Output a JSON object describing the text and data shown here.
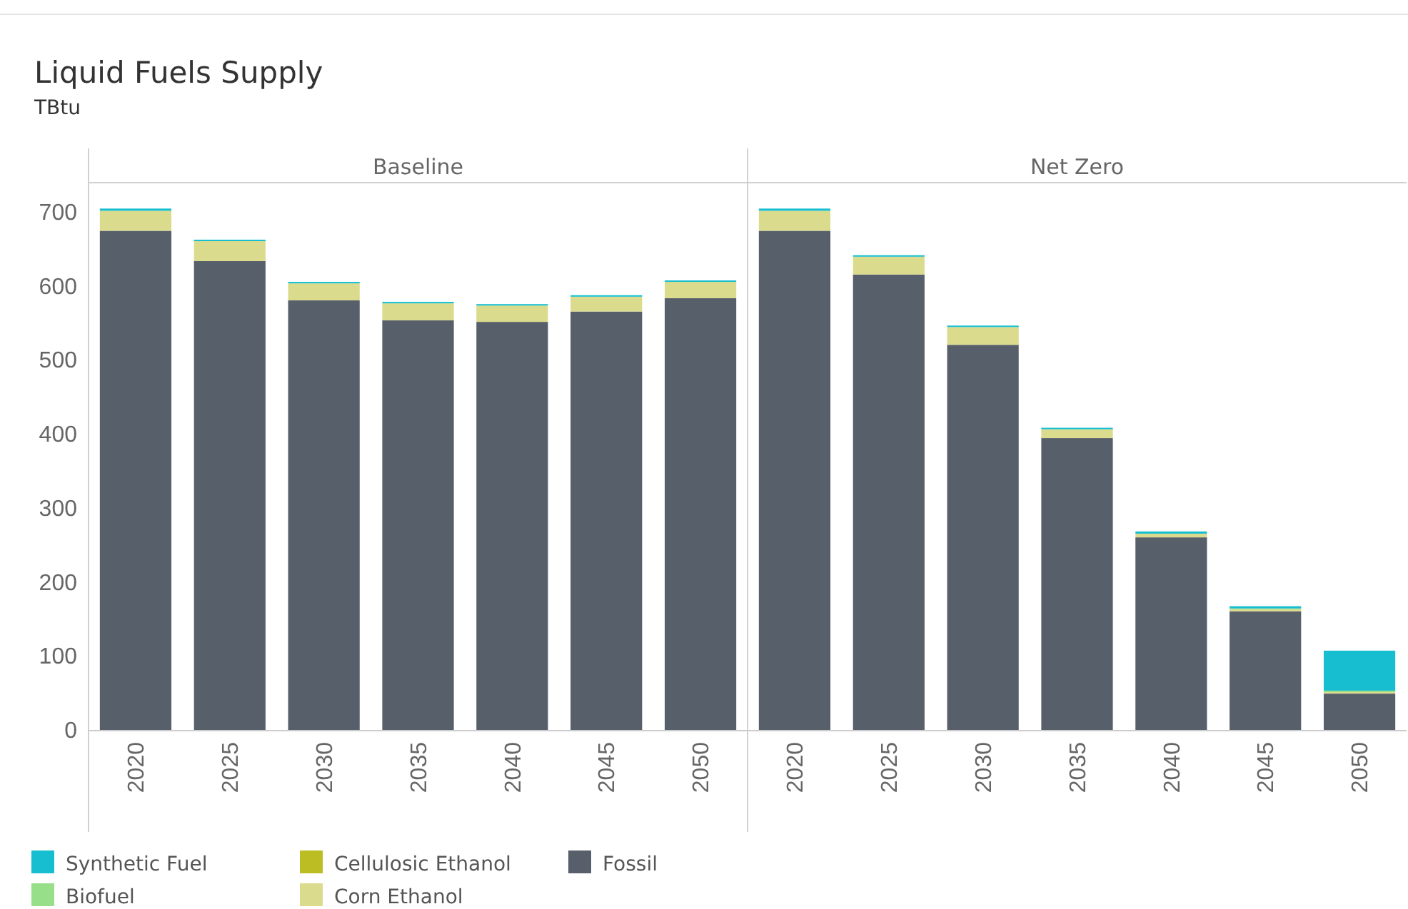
{
  "chart_data": [
    {
      "type": "bar",
      "title": "Liquid Fuels Supply",
      "subtitle": "TBtu",
      "annotations": [
        "Baseline"
      ],
      "stacked": true,
      "categories": [
        "2020",
        "2025",
        "2030",
        "2035",
        "2040",
        "2045",
        "2050"
      ],
      "ylim": [
        0,
        740
      ],
      "yticks": [
        0,
        100,
        200,
        300,
        400,
        500,
        600,
        700
      ],
      "legend": "bottom",
      "series": [
        {
          "name": "Fossil",
          "color": "#575f6b",
          "values": [
            675,
            634,
            581,
            554,
            552,
            566,
            584
          ]
        },
        {
          "name": "Corn Ethanol",
          "color": "#dbdb8d",
          "values": [
            27,
            27,
            23,
            23,
            22,
            20,
            22
          ]
        },
        {
          "name": "Cellulosic Ethanol",
          "color": "#bcbd22",
          "values": [
            0,
            0,
            0,
            0,
            0,
            0,
            0
          ]
        },
        {
          "name": "Biofuel",
          "color": "#98df8a",
          "values": [
            0,
            0,
            0,
            0,
            0,
            0,
            0
          ]
        },
        {
          "name": "Synthetic Fuel",
          "color": "#17becf",
          "values": [
            3,
            2,
            2,
            2,
            2,
            2,
            2
          ]
        }
      ]
    },
    {
      "type": "bar",
      "annotations": [
        "Net Zero"
      ],
      "stacked": true,
      "categories": [
        "2020",
        "2025",
        "2030",
        "2035",
        "2040",
        "2045",
        "2050"
      ],
      "ylim": [
        0,
        740
      ],
      "tick_labels": "x",
      "series": [
        {
          "color": "#575f6b",
          "values": [
            675,
            616,
            521,
            395,
            261,
            161,
            50
          ]
        },
        {
          "color": "#dbdb8d",
          "values": [
            27,
            24,
            24,
            12,
            5,
            3,
            2
          ]
        },
        {
          "color": "#bcbd22",
          "values": [
            0,
            0,
            0,
            0,
            0,
            0,
            0
          ]
        },
        {
          "color": "#98df8a",
          "values": [
            0,
            0,
            0,
            0,
            0,
            1,
            2
          ]
        },
        {
          "color": "#17becf",
          "values": [
            3,
            2,
            2,
            2,
            3,
            3,
            54
          ]
        }
      ]
    }
  ]
}
